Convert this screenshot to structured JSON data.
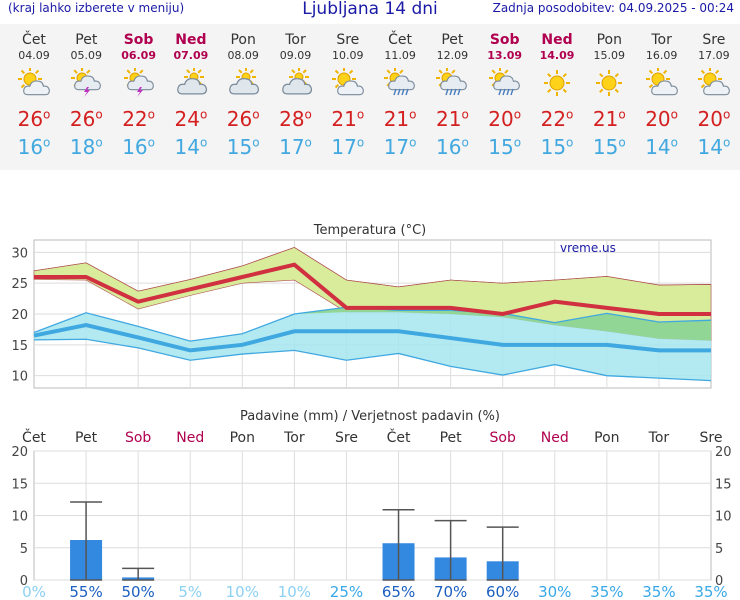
{
  "header": {
    "menu_hint": "(kraj lahko izberete v meniju)",
    "title": "Ljubljana 14 dni",
    "updated": "Zadnja posodobitev: 04.09.2025 - 00:24"
  },
  "days": [
    {
      "name": "Čet",
      "date": "04.09",
      "weekend": false,
      "icon": "partly-cloudy-icon",
      "tmax": "26",
      "tmin": "16"
    },
    {
      "name": "Pet",
      "date": "05.09",
      "weekend": false,
      "icon": "thunderstorm-icon",
      "tmax": "26",
      "tmin": "18"
    },
    {
      "name": "Sob",
      "date": "06.09",
      "weekend": true,
      "icon": "sun-thunderstorm-icon",
      "tmax": "22",
      "tmin": "16"
    },
    {
      "name": "Ned",
      "date": "07.09",
      "weekend": true,
      "icon": "cloudy-icon",
      "tmax": "24",
      "tmin": "14"
    },
    {
      "name": "Pon",
      "date": "08.09",
      "weekend": false,
      "icon": "cloudy-icon",
      "tmax": "26",
      "tmin": "15"
    },
    {
      "name": "Tor",
      "date": "09.09",
      "weekend": false,
      "icon": "cloudy-icon",
      "tmax": "28",
      "tmin": "17"
    },
    {
      "name": "Sre",
      "date": "10.09",
      "weekend": false,
      "icon": "partly-cloudy-icon",
      "tmax": "21",
      "tmin": "17"
    },
    {
      "name": "Čet",
      "date": "11.09",
      "weekend": false,
      "icon": "rain-icon",
      "tmax": "21",
      "tmin": "17"
    },
    {
      "name": "Pet",
      "date": "12.09",
      "weekend": false,
      "icon": "sun-rain-icon",
      "tmax": "21",
      "tmin": "16"
    },
    {
      "name": "Sob",
      "date": "13.09",
      "weekend": true,
      "icon": "sun-rain-icon",
      "tmax": "20",
      "tmin": "15"
    },
    {
      "name": "Ned",
      "date": "14.09",
      "weekend": true,
      "icon": "sun-icon",
      "tmax": "22",
      "tmin": "15"
    },
    {
      "name": "Pon",
      "date": "15.09",
      "weekend": false,
      "icon": "sun-icon",
      "tmax": "21",
      "tmin": "15"
    },
    {
      "name": "Tor",
      "date": "16.09",
      "weekend": false,
      "icon": "partly-cloudy-icon",
      "tmax": "20",
      "tmin": "14"
    },
    {
      "name": "Sre",
      "date": "17.09",
      "weekend": false,
      "icon": "partly-cloudy-icon",
      "tmax": "20",
      "tmin": "14"
    }
  ],
  "colors": {
    "weekend": "#b0004f",
    "tmax": "#d42020",
    "tmin": "#42a8e0",
    "max_band": "#d8ec9c",
    "min_band": "#a6e6f0",
    "overlap": "#8ed48c",
    "max_line": "#d03040",
    "min_line": "#40a8e0",
    "bar": "#3388e0",
    "whisker": "#555555"
  },
  "chart_data": [
    {
      "type": "line",
      "title": "Temperatura (°C)",
      "watermark": "vreme.us",
      "categories": [
        "Čet",
        "Pet",
        "Sob",
        "Ned",
        "Pon",
        "Tor",
        "Sre",
        "Čet",
        "Pet",
        "Sob",
        "Ned",
        "Pon",
        "Tor",
        "Sre"
      ],
      "x": [
        0,
        1,
        2,
        3,
        4,
        5,
        6,
        7,
        8,
        9,
        10,
        11,
        12,
        13
      ],
      "ylim": [
        8,
        32
      ],
      "yticks": [
        10,
        15,
        20,
        25,
        30
      ],
      "grid": true,
      "series": [
        {
          "role": "max_mean",
          "values": [
            26,
            26,
            22,
            24,
            26,
            28,
            21,
            21,
            21,
            20,
            22,
            21,
            20,
            20
          ]
        },
        {
          "role": "max_upper",
          "values": [
            27,
            28.3,
            23.7,
            25.6,
            27.8,
            30.8,
            25.5,
            24.4,
            25.5,
            25,
            25.5,
            26.1,
            24.7,
            24.8
          ]
        },
        {
          "role": "max_lower",
          "values": [
            25.6,
            25.5,
            20.8,
            23,
            25,
            25.5,
            20.3,
            20.3,
            20,
            19.5,
            18.2,
            17.2,
            16,
            15.7
          ]
        },
        {
          "role": "min_mean",
          "values": [
            16.5,
            18.2,
            16.2,
            14.1,
            15,
            17.2,
            17.2,
            17.2,
            16.1,
            15,
            15,
            15,
            14.1,
            14.1
          ]
        },
        {
          "role": "min_upper",
          "values": [
            17,
            20.2,
            18,
            15.6,
            16.8,
            20,
            21.1,
            20.6,
            20.6,
            20.1,
            18.6,
            20.1,
            18.7,
            19
          ]
        },
        {
          "role": "min_lower",
          "values": [
            15.8,
            15.9,
            14.5,
            12.5,
            13.5,
            14.1,
            12.5,
            13.6,
            11.5,
            10.1,
            11.8,
            10,
            9.6,
            9.2
          ]
        }
      ]
    },
    {
      "type": "bar",
      "title": "Padavine (mm) / Verjetnost padavin (%)",
      "categories": [
        "Čet",
        "Pet",
        "Sob",
        "Ned",
        "Pon",
        "Tor",
        "Sre",
        "Čet",
        "Pet",
        "Sob",
        "Ned",
        "Pon",
        "Tor",
        "Sre"
      ],
      "weekend": [
        false,
        false,
        true,
        true,
        false,
        false,
        false,
        false,
        false,
        true,
        true,
        false,
        false,
        false
      ],
      "ylim": [
        0,
        20
      ],
      "yticks": [
        0,
        5,
        10,
        15,
        20
      ],
      "values": [
        0,
        6.2,
        0.4,
        0,
        0,
        0,
        0,
        5.7,
        3.5,
        2.9,
        0,
        0,
        0,
        0
      ],
      "whisker_max": [
        0,
        12.1,
        1.8,
        0,
        0,
        0,
        0,
        10.9,
        9.2,
        8.2,
        0,
        0,
        0,
        0
      ],
      "probability": [
        "0%",
        "55%",
        "50%",
        "5%",
        "10%",
        "10%",
        "25%",
        "65%",
        "70%",
        "60%",
        "30%",
        "35%",
        "35%",
        "35%"
      ]
    }
  ]
}
